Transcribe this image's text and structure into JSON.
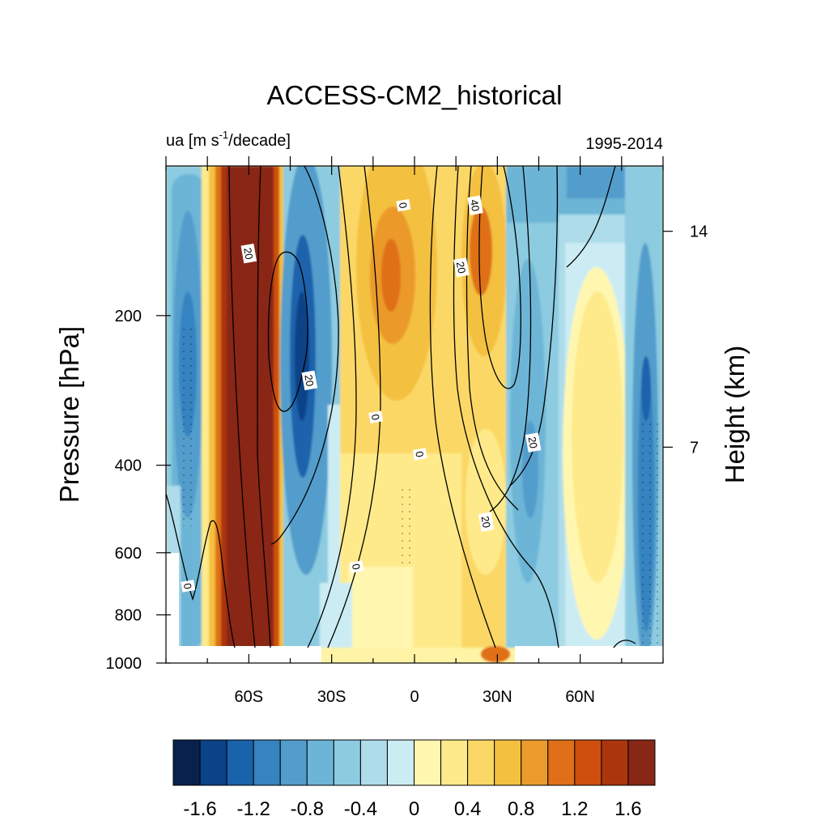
{
  "chart_data": {
    "type": "heatmap",
    "title": "ACCESS-CM2_historical",
    "subtitle_left_base": "ua [m s",
    "subtitle_left_sup": "-1",
    "subtitle_left_tail": "/decade]",
    "subtitle_right": "1995-2014",
    "ylabel": "Pressure [hPa]",
    "ylabel_right": "Height (km)",
    "x_ticks": [
      {
        "value": -60,
        "label": "60S"
      },
      {
        "value": -30,
        "label": "30S"
      },
      {
        "value": 0,
        "label": "0"
      },
      {
        "value": 30,
        "label": "30N"
      },
      {
        "value": 60,
        "label": "60N"
      }
    ],
    "xlim": [
      -90,
      90
    ],
    "y_ticks": [
      {
        "value": 200,
        "label": "200"
      },
      {
        "value": 400,
        "label": "400"
      },
      {
        "value": 600,
        "label": "600"
      },
      {
        "value": 800,
        "label": "800"
      },
      {
        "value": 1000,
        "label": "1000"
      }
    ],
    "ylim": [
      1000,
      100
    ],
    "y_scale": "log",
    "y_right_ticks": [
      {
        "value": 14,
        "label": "14"
      },
      {
        "value": 7,
        "label": "7"
      }
    ],
    "colorbar": {
      "levels": [
        -1.8,
        -1.6,
        -1.4,
        -1.2,
        -1.0,
        -0.8,
        -0.6,
        -0.4,
        -0.2,
        0,
        0.2,
        0.4,
        0.6,
        0.8,
        1.0,
        1.2,
        1.4,
        1.6,
        1.8
      ],
      "labels": [
        {
          "value": -1.6,
          "label": "-1.6"
        },
        {
          "value": -1.2,
          "label": "-1.2"
        },
        {
          "value": -0.8,
          "label": "-0.8"
        },
        {
          "value": -0.4,
          "label": "-0.4"
        },
        {
          "value": 0,
          "label": "0"
        },
        {
          "value": 0.4,
          "label": "0.4"
        },
        {
          "value": 0.8,
          "label": "0.8"
        },
        {
          "value": 1.2,
          "label": "1.2"
        },
        {
          "value": 1.6,
          "label": "1.6"
        }
      ],
      "colors": [
        "#08224d",
        "#0b4288",
        "#1a62ac",
        "#3583c0",
        "#529dcc",
        "#6db5d6",
        "#8ccbe0",
        "#aedcea",
        "#ccecf4",
        "#fff7b0",
        "#feea8a",
        "#fbd866",
        "#f4c040",
        "#eb9a2b",
        "#df7019",
        "#cf4f0e",
        "#ab360e",
        "#892717"
      ]
    },
    "contour_labels": [
      {
        "lat": -60,
        "p": 150,
        "label": "20"
      },
      {
        "lat": -38,
        "p": 270,
        "label": "20"
      },
      {
        "lat": -4,
        "p": 120,
        "label": "0"
      },
      {
        "lat": 17,
        "p": 160,
        "label": "20"
      },
      {
        "lat": 22,
        "p": 120,
        "label": "40"
      },
      {
        "lat": -14,
        "p": 320,
        "label": "0"
      },
      {
        "lat": 2,
        "p": 380,
        "label": "0"
      },
      {
        "lat": 43,
        "p": 360,
        "label": "20"
      },
      {
        "lat": 26,
        "p": 520,
        "label": "20"
      },
      {
        "lat": -21,
        "p": 640,
        "label": "0"
      },
      {
        "lat": -82,
        "p": 700,
        "label": "0"
      }
    ]
  }
}
